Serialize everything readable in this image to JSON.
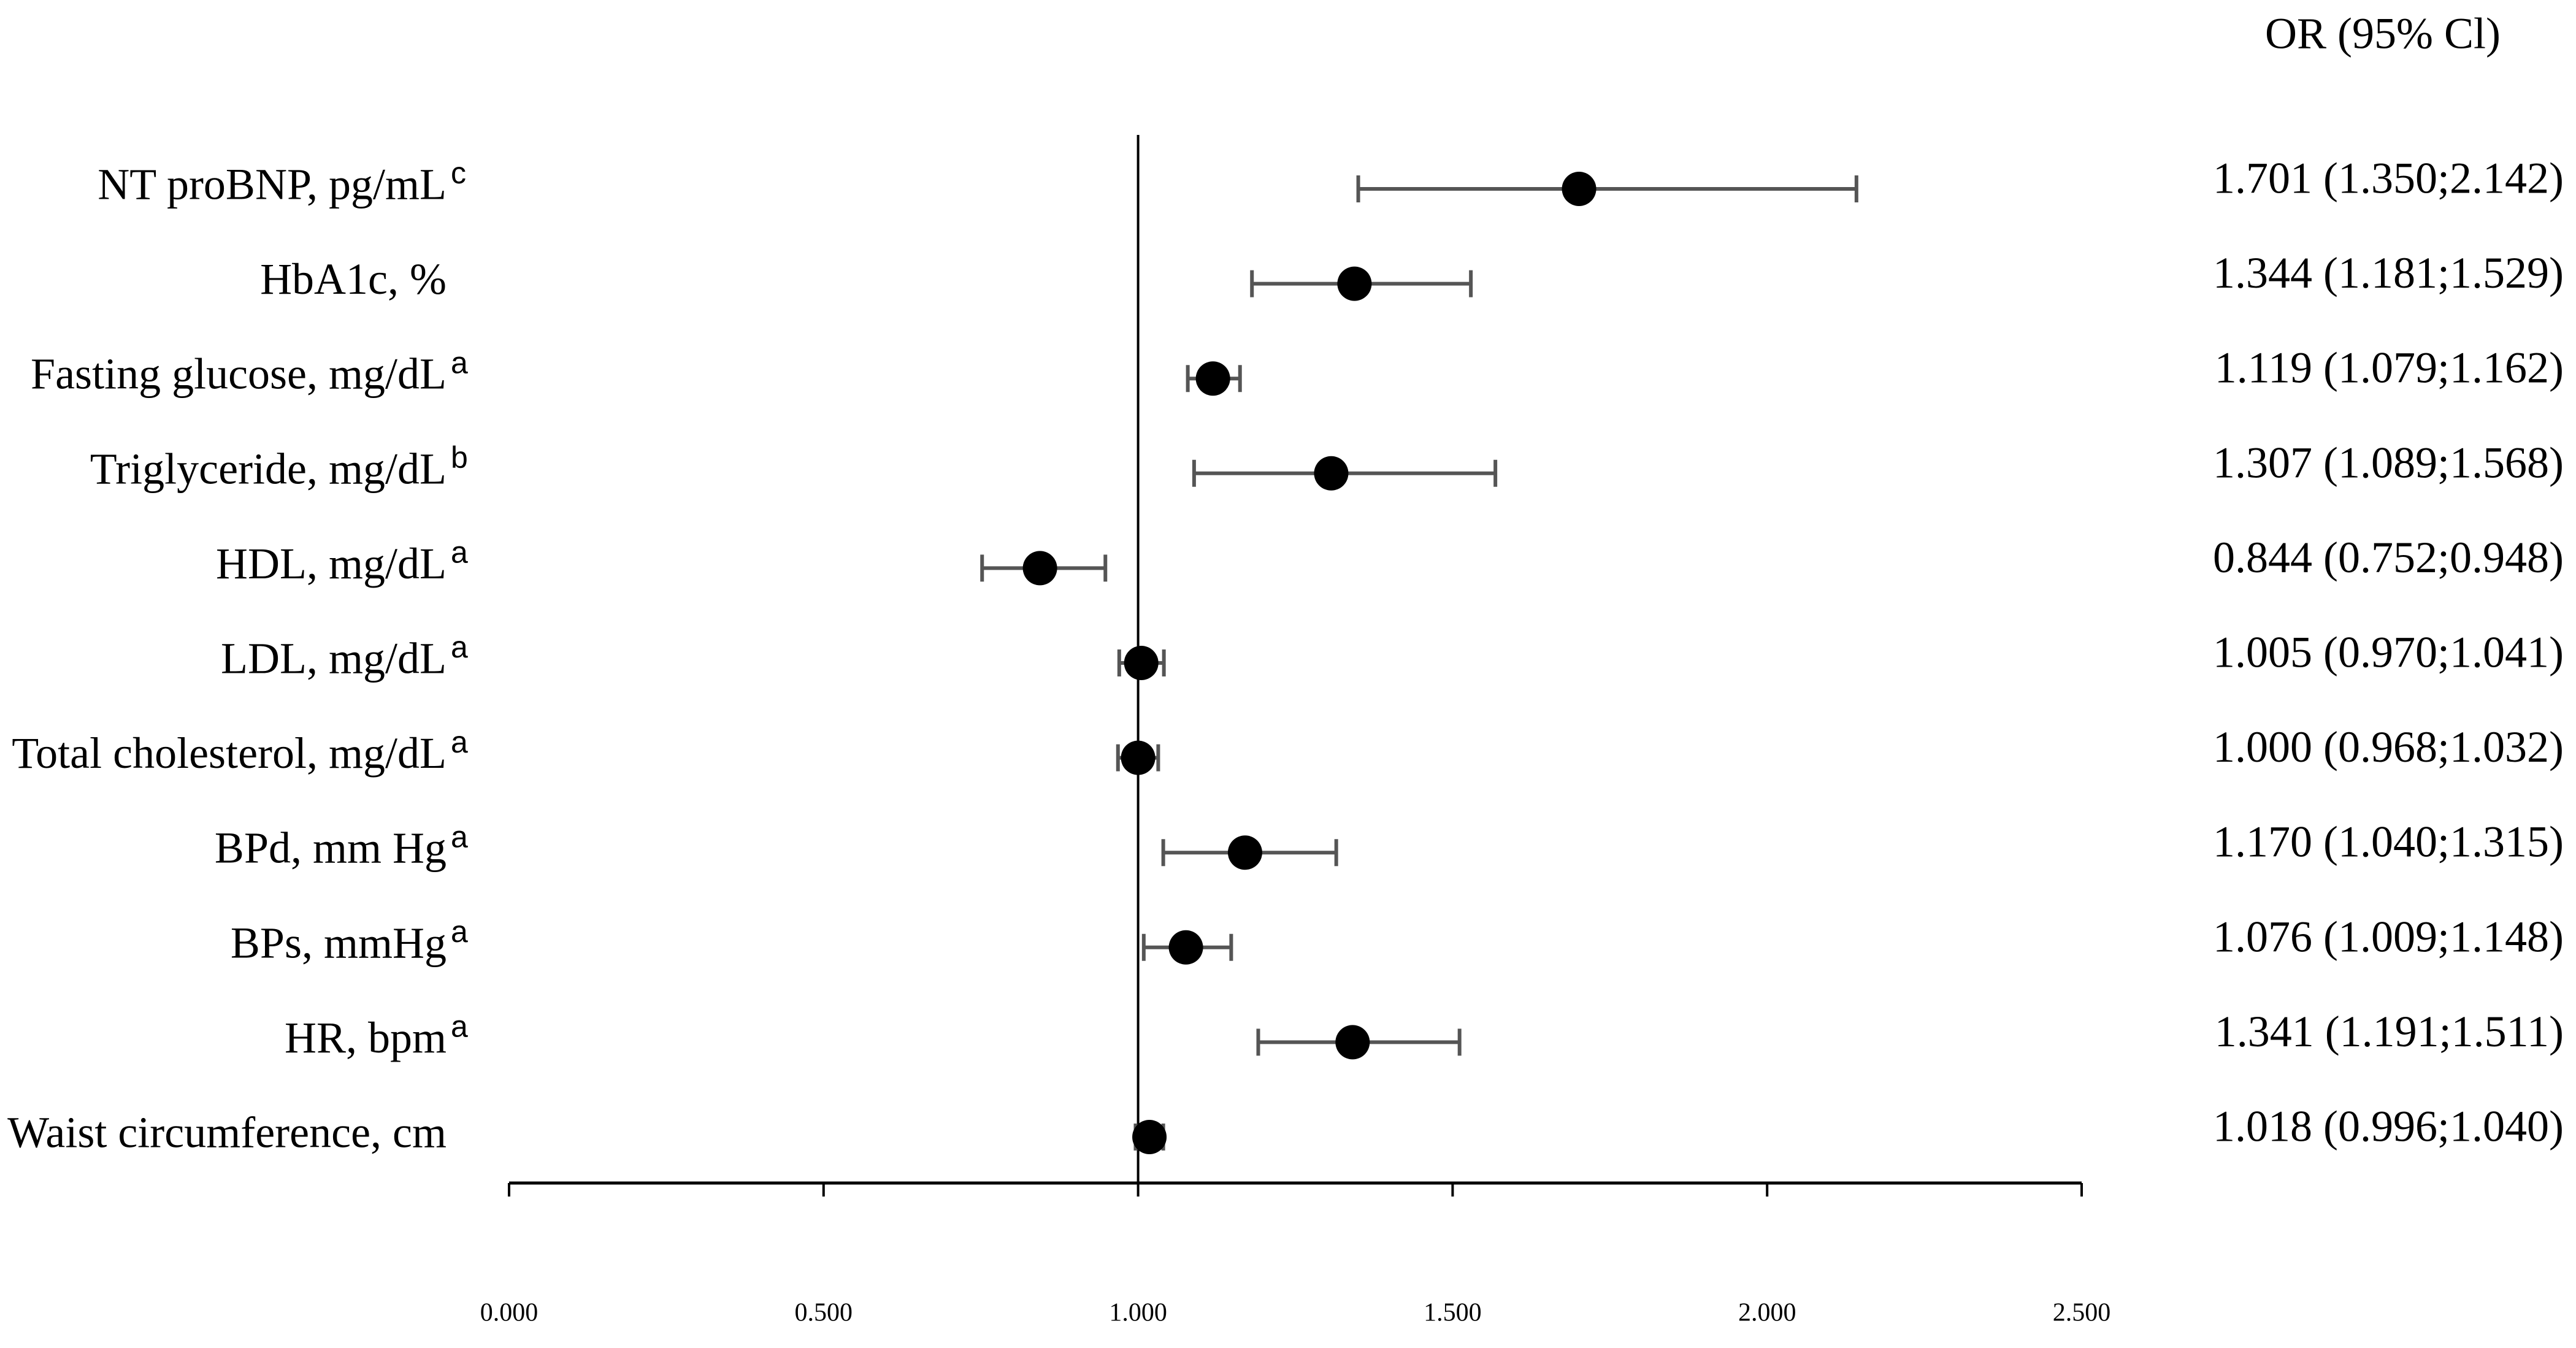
{
  "chart_data": {
    "type": "forest",
    "value_header": "OR (95% Cl)",
    "categories": [
      "NT proBNP, pg/mL",
      "HbA1c, %",
      "Fasting glucose, mg/dL",
      "Triglyceride, mg/dL",
      "HDL, mg/dL",
      "LDL, mg/dL",
      "Total cholesterol, mg/dL",
      "BPd, mm Hg",
      "BPs, mmHg",
      "HR, bpm",
      "Waist circumference, cm"
    ],
    "category_notes": [
      "c",
      null,
      "a",
      "b",
      "a",
      "a",
      "a",
      "a",
      "a",
      "a",
      null
    ],
    "values": [
      1.701,
      1.344,
      1.119,
      1.307,
      0.844,
      1.005,
      1.0,
      1.17,
      1.076,
      1.341,
      1.018
    ],
    "ci_low": [
      1.35,
      1.181,
      1.079,
      1.089,
      0.752,
      0.97,
      0.968,
      1.04,
      1.009,
      1.191,
      0.996
    ],
    "ci_high": [
      2.142,
      1.529,
      1.162,
      1.568,
      0.948,
      1.041,
      1.032,
      1.315,
      1.148,
      1.511,
      1.04
    ],
    "value_labels": [
      "1.701 (1.350;2.142)",
      "1.344 (1.181;1.529)",
      "1.119 (1.079;1.162)",
      "1.307 (1.089;1.568)",
      "0.844 (0.752;0.948)",
      "1.005 (0.970;1.041)",
      "1.000 (0.968;1.032)",
      "1.170 (1.040;1.315)",
      "1.076 (1.009;1.148)",
      "1.341 (1.191;1.511)",
      "1.018 (0.996;1.040)"
    ],
    "reference_line": 1,
    "color": "#000000",
    "ci_color": "#555555",
    "xlim": [
      0,
      2.5
    ],
    "xticks": [
      {
        "value": 0,
        "label": "0.000"
      },
      {
        "value": 0.5,
        "label": "0.500"
      },
      {
        "value": 1,
        "label": "1.000"
      },
      {
        "value": 1.5,
        "label": "1.500"
      },
      {
        "value": 2,
        "label": "2.000"
      },
      {
        "value": 2.5,
        "label": "2.500"
      }
    ]
  }
}
